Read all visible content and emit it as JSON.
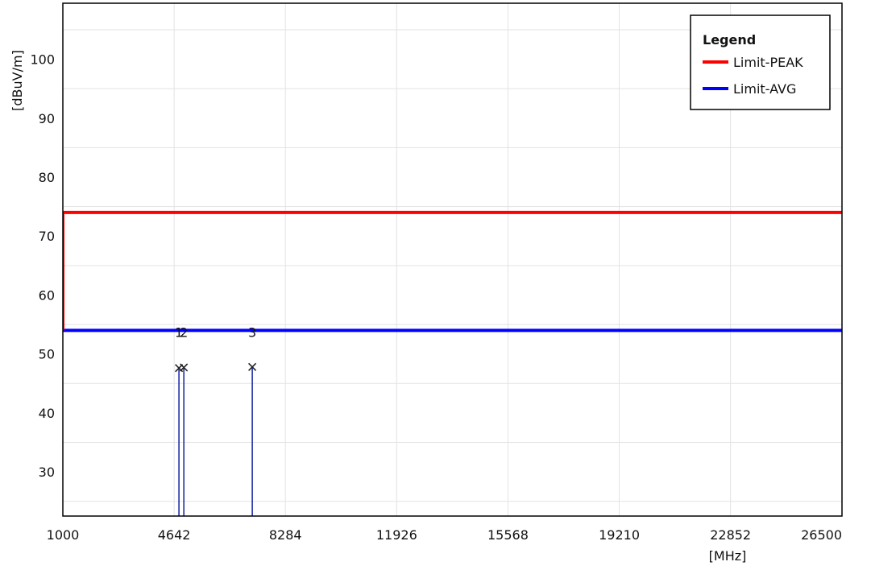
{
  "chart_data": {
    "type": "line",
    "xlabel": "[MHz]",
    "ylabel": "[dBuV/m]",
    "xlim": [
      1000,
      26500
    ],
    "ylim": [
      22.5,
      109.5
    ],
    "x_ticks": [
      1000,
      4642,
      8284,
      11926,
      15568,
      19210,
      22852,
      26500
    ],
    "y_ticks": [
      30,
      40,
      50,
      60,
      70,
      80,
      90,
      100
    ],
    "grid": true,
    "legend": {
      "title": "Legend",
      "placement": "top-right",
      "entries": [
        {
          "name": "Limit-PEAK",
          "color": "#ff0000"
        },
        {
          "name": "Limit-AVG",
          "color": "#0000ff"
        }
      ]
    },
    "series": [
      {
        "name": "Limit-PEAK",
        "color": "#ff0000",
        "x": [
          1000,
          26500
        ],
        "y": [
          74,
          74
        ]
      },
      {
        "name": "Limit-AVG",
        "color": "#0000ff",
        "x": [
          1000,
          26500
        ],
        "y": [
          54,
          54
        ]
      }
    ],
    "markers": [
      {
        "label": "1",
        "x": 4800,
        "y": 47.6
      },
      {
        "label": "2",
        "x": 4960,
        "y": 47.7
      },
      {
        "label": "3",
        "x": 7200,
        "y": 47.8
      }
    ],
    "marker_color": "#1f2fa8"
  }
}
